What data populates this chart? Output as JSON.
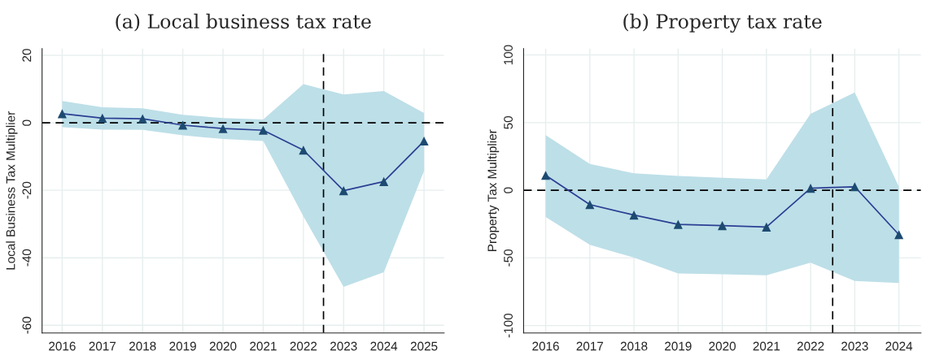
{
  "chart_data": [
    {
      "type": "line",
      "title": "(a) Local business tax rate",
      "ylabel": "Local Business Tax Multiplier",
      "x": [
        2016,
        2017,
        2018,
        2019,
        2020,
        2021,
        2022,
        2023,
        2024,
        2025
      ],
      "series": [
        {
          "color": "#2b3f93",
          "values": [
            2.7,
            1.4,
            1.2,
            -0.7,
            -1.7,
            -2.2,
            -8.1,
            -20.1,
            -17.4,
            -5.4
          ],
          "lower": [
            -1.3,
            -2.0,
            -2.1,
            -3.7,
            -4.8,
            -5.4,
            -27.7,
            -48.6,
            -44.3,
            -14.3
          ],
          "upper": [
            6.5,
            4.6,
            4.3,
            2.4,
            1.4,
            1.0,
            11.5,
            8.4,
            9.4,
            2.9
          ]
        }
      ],
      "xlim": [
        2015.5,
        2025.5
      ],
      "xticks": [
        2016,
        2017,
        2018,
        2019,
        2020,
        2021,
        2022,
        2023,
        2024,
        2025
      ],
      "ylim": [
        -62.3,
        22
      ],
      "yticks": [
        -60,
        -40,
        -20,
        0,
        20
      ],
      "ref_lines": [
        {
          "axis": "y",
          "value": 0,
          "color": "#000000",
          "line_style": "dashed"
        },
        {
          "axis": "x",
          "value": 2022.5,
          "color": "#000000",
          "line_style": "dashed"
        }
      ],
      "grid": true,
      "marker": "triangle",
      "line_style": "solid",
      "legend": false
    },
    {
      "type": "line",
      "title": "(b) Property tax rate",
      "ylabel": "Property Tax Multiplier",
      "x": [
        2016,
        2017,
        2018,
        2019,
        2020,
        2021,
        2022,
        2023,
        2024
      ],
      "series": [
        {
          "color": "#2b3f93",
          "values": [
            11,
            -10.6,
            -18.3,
            -25.2,
            -26.1,
            -27.2,
            1.5,
            2.6,
            -32.8
          ],
          "lower": [
            -19.8,
            -40.3,
            -49.8,
            -61.5,
            -62.1,
            -62.8,
            -53.5,
            -67.1,
            -68.6
          ],
          "upper": [
            40.8,
            19.4,
            12.5,
            10.6,
            9.3,
            8.0,
            56.5,
            72.3,
            2.6
          ]
        }
      ],
      "xlim": [
        2015.5,
        2024.5
      ],
      "xticks": [
        2016,
        2017,
        2018,
        2019,
        2020,
        2021,
        2022,
        2023,
        2024
      ],
      "ylim": [
        -105.5,
        104.7
      ],
      "yticks": [
        -100,
        -50,
        0,
        50,
        100
      ],
      "ref_lines": [
        {
          "axis": "y",
          "value": 0,
          "color": "#000000",
          "line_style": "dashed"
        },
        {
          "axis": "x",
          "value": 2022.5,
          "color": "#000000",
          "line_style": "dashed"
        }
      ],
      "grid": true,
      "marker": "triangle",
      "line_style": "solid",
      "legend": false
    }
  ]
}
